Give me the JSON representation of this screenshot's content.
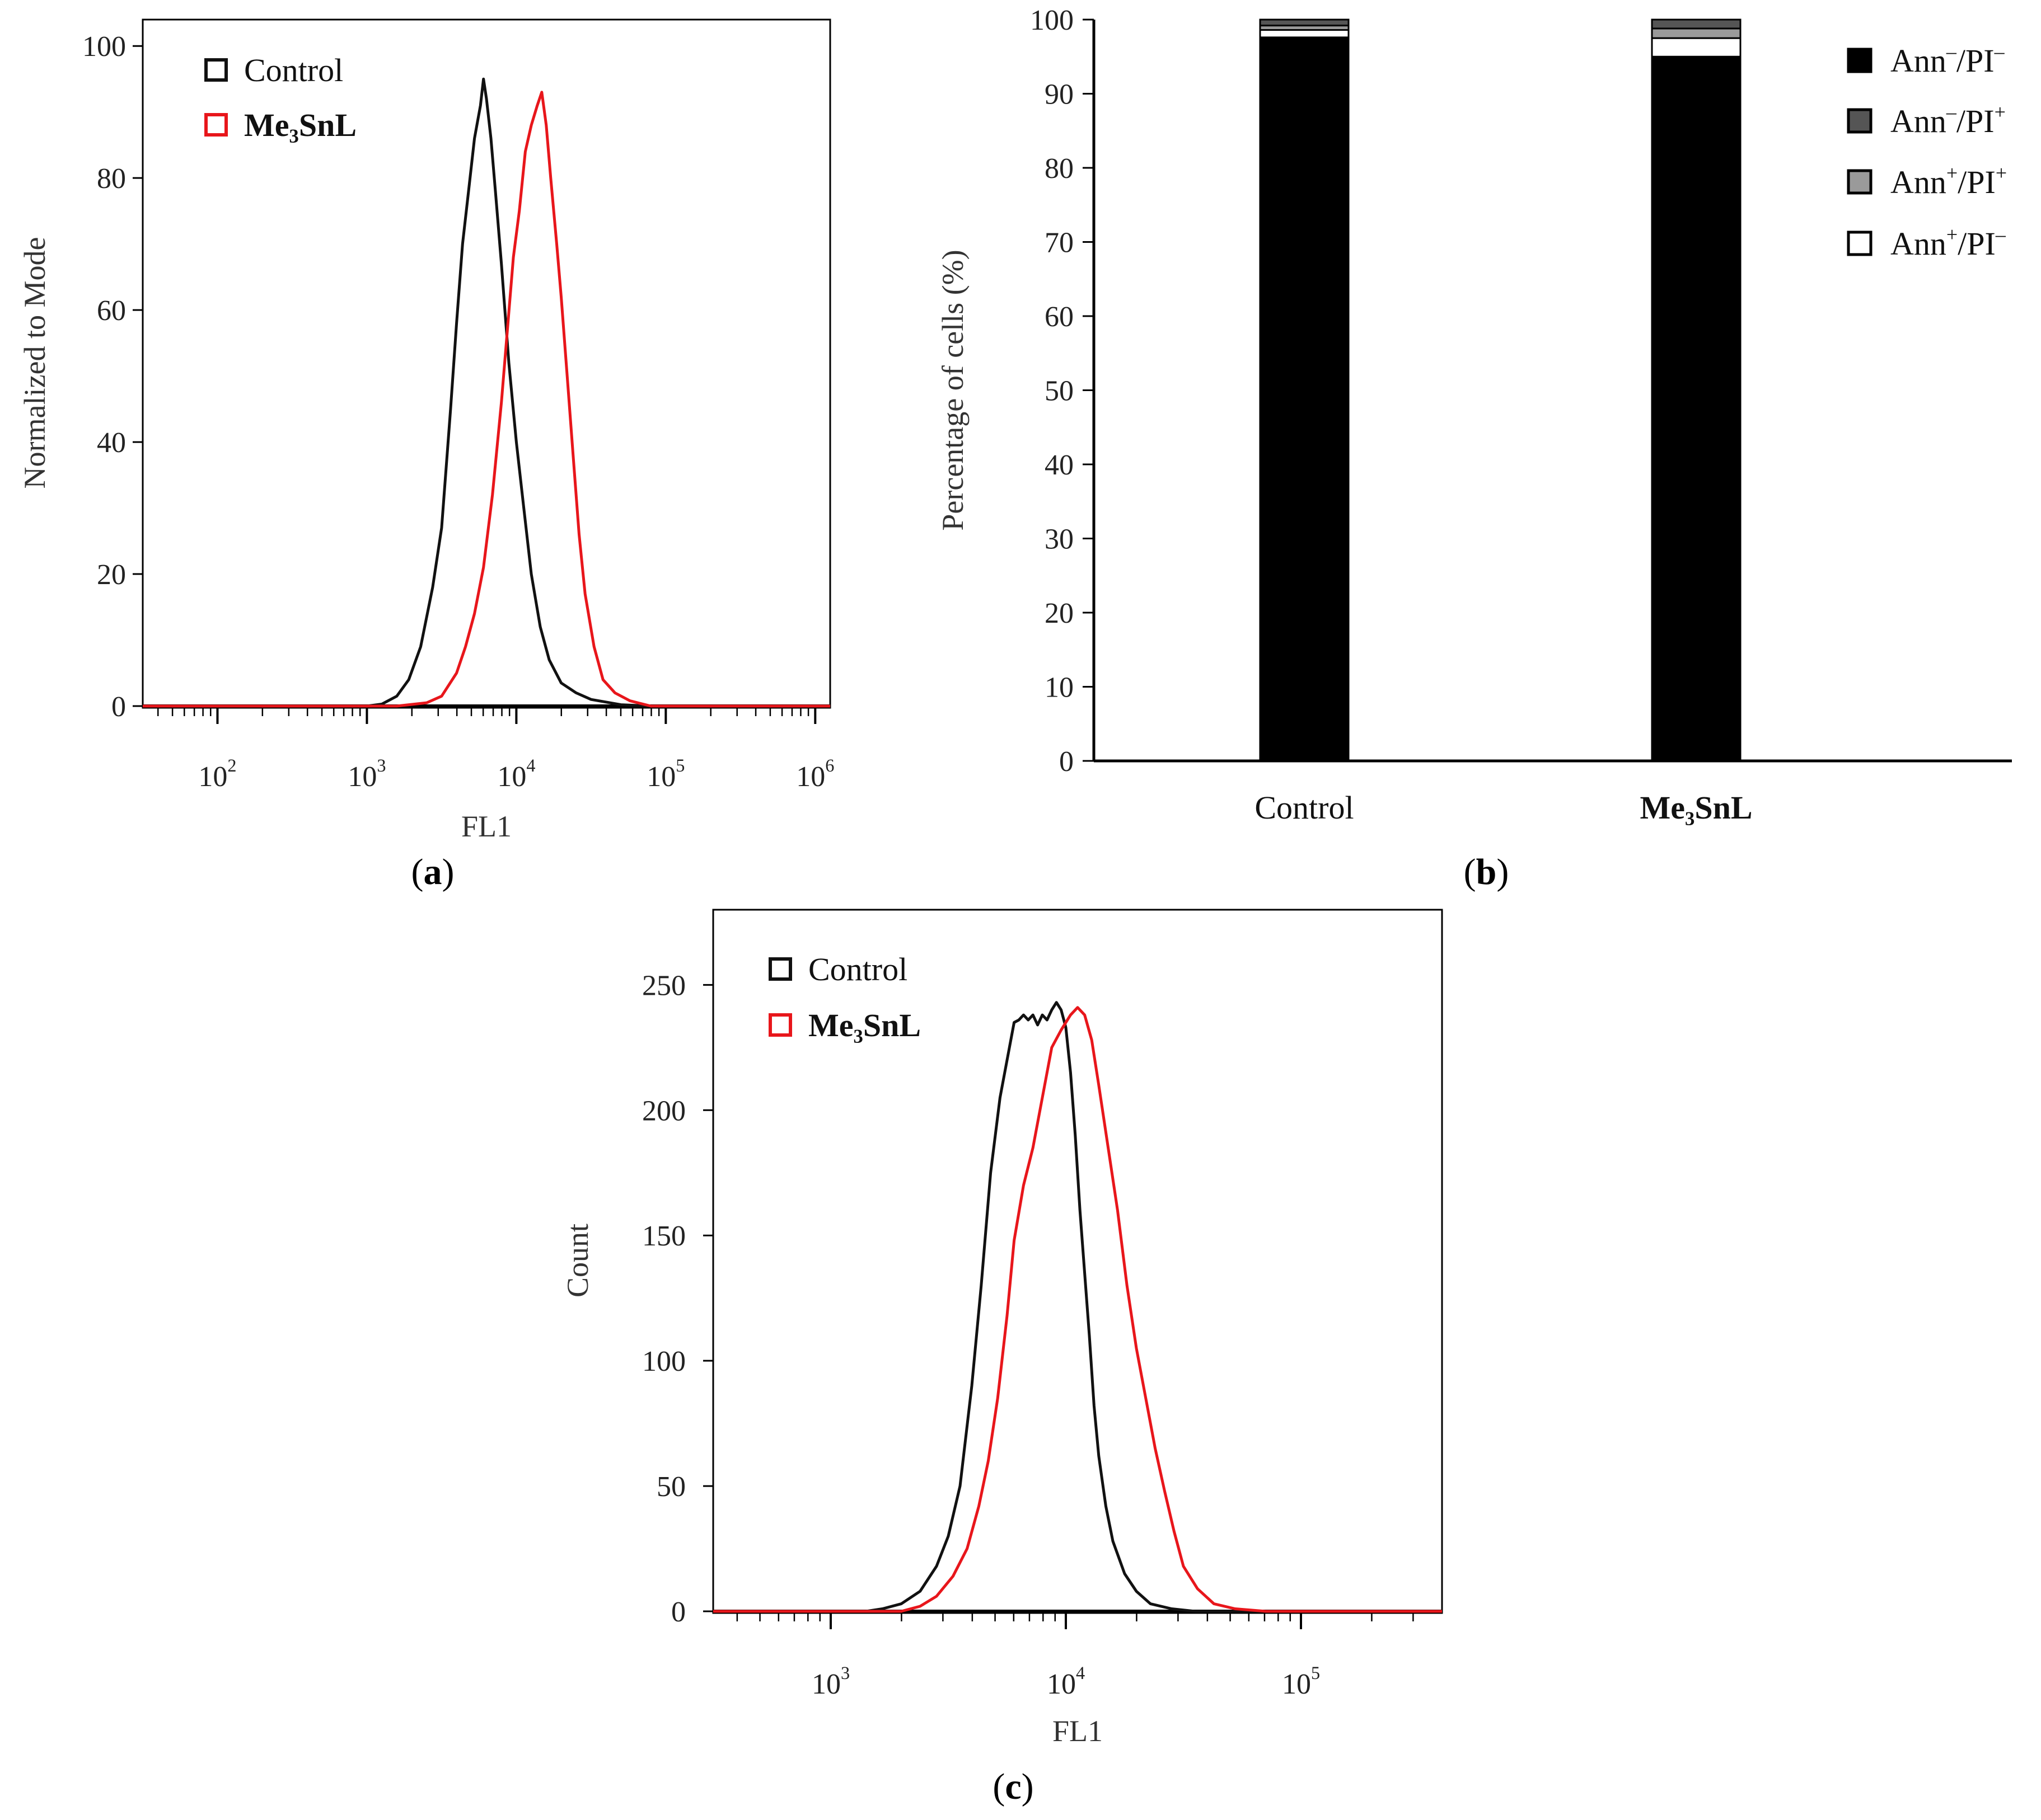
{
  "chart_data": [
    {
      "id": "a",
      "panel_label": "a",
      "type": "line",
      "x_scale": "log",
      "xlabel": "FL1",
      "ylabel": "Normalized to Mode",
      "xlim_log10": [
        1.5,
        6.1
      ],
      "ylim": [
        0,
        104
      ],
      "x_ticks": [
        {
          "base": "10",
          "exp": "2",
          "log10": 2
        },
        {
          "base": "10",
          "exp": "3",
          "log10": 3
        },
        {
          "base": "10",
          "exp": "4",
          "log10": 4
        },
        {
          "base": "10",
          "exp": "5",
          "log10": 5
        },
        {
          "base": "10",
          "exp": "6",
          "log10": 6
        }
      ],
      "y_ticks": [
        0,
        20,
        40,
        60,
        80,
        100
      ],
      "legend": [
        {
          "name": "Control",
          "color": "#111111",
          "bold": false
        },
        {
          "name": "Me₃SnL",
          "color": "#e8161b",
          "bold": true
        }
      ],
      "series": [
        {
          "name": "Control",
          "color": "#111111",
          "points": [
            [
              1.5,
              0
            ],
            [
              3.0,
              0
            ],
            [
              3.1,
              0.3
            ],
            [
              3.2,
              1.5
            ],
            [
              3.28,
              4
            ],
            [
              3.36,
              9
            ],
            [
              3.44,
              18
            ],
            [
              3.5,
              27
            ],
            [
              3.56,
              45
            ],
            [
              3.6,
              58
            ],
            [
              3.64,
              70
            ],
            [
              3.68,
              78
            ],
            [
              3.72,
              86
            ],
            [
              3.76,
              91
            ],
            [
              3.78,
              95
            ],
            [
              3.8,
              92
            ],
            [
              3.83,
              86
            ],
            [
              3.86,
              78
            ],
            [
              3.9,
              67
            ],
            [
              3.95,
              52
            ],
            [
              4.0,
              40
            ],
            [
              4.05,
              30
            ],
            [
              4.1,
              20
            ],
            [
              4.16,
              12
            ],
            [
              4.22,
              7
            ],
            [
              4.3,
              3.5
            ],
            [
              4.4,
              2
            ],
            [
              4.5,
              1
            ],
            [
              4.7,
              0.2
            ],
            [
              4.9,
              0
            ],
            [
              6.1,
              0
            ]
          ]
        },
        {
          "name": "Me₃SnL",
          "color": "#e8161b",
          "points": [
            [
              1.5,
              0
            ],
            [
              3.2,
              0
            ],
            [
              3.4,
              0.5
            ],
            [
              3.5,
              1.5
            ],
            [
              3.6,
              5
            ],
            [
              3.66,
              9
            ],
            [
              3.72,
              14
            ],
            [
              3.78,
              21
            ],
            [
              3.84,
              32
            ],
            [
              3.9,
              46
            ],
            [
              3.94,
              57
            ],
            [
              3.98,
              68
            ],
            [
              4.02,
              75
            ],
            [
              4.06,
              84
            ],
            [
              4.1,
              88
            ],
            [
              4.14,
              91
            ],
            [
              4.17,
              93
            ],
            [
              4.2,
              88
            ],
            [
              4.23,
              80
            ],
            [
              4.27,
              70
            ],
            [
              4.3,
              62
            ],
            [
              4.34,
              50
            ],
            [
              4.38,
              38
            ],
            [
              4.42,
              26
            ],
            [
              4.46,
              17
            ],
            [
              4.52,
              9
            ],
            [
              4.58,
              4
            ],
            [
              4.66,
              2
            ],
            [
              4.76,
              0.8
            ],
            [
              4.9,
              0
            ],
            [
              6.1,
              0
            ]
          ]
        }
      ]
    },
    {
      "id": "b",
      "panel_label": "b",
      "type": "bar",
      "stacked": true,
      "ylabel": "Percentage of cells (%)",
      "ylim": [
        0,
        100
      ],
      "y_ticks": [
        0,
        10,
        20,
        30,
        40,
        50,
        60,
        70,
        80,
        90,
        100
      ],
      "categories": [
        {
          "label": "Control",
          "bold": false
        },
        {
          "label": "Me₃SnL",
          "bold": true
        }
      ],
      "legend_labels": [
        {
          "base": "Ann",
          "sup1": "–",
          "mid": "/PI",
          "sup2": "–"
        },
        {
          "base": "Ann",
          "sup1": "–",
          "mid": "/PI",
          "sup2": "+"
        },
        {
          "base": "Ann",
          "sup1": "+",
          "mid": "/PI",
          "sup2": "+"
        },
        {
          "base": "Ann",
          "sup1": "+",
          "mid": "/PI",
          "sup2": "–"
        }
      ],
      "series": [
        {
          "name": "Ann–/PI–",
          "color": "#000000",
          "values": [
            97.6,
            95.0
          ]
        },
        {
          "name": "Ann+/PI–",
          "color": "#ffffff",
          "values": [
            1.0,
            2.5
          ]
        },
        {
          "name": "Ann+/PI+",
          "color": "#9a9a9a",
          "values": [
            0.6,
            1.3
          ]
        },
        {
          "name": "Ann–/PI+",
          "color": "#555555",
          "values": [
            0.8,
            1.2
          ]
        }
      ]
    },
    {
      "id": "c",
      "panel_label": "c",
      "type": "line",
      "x_scale": "log",
      "xlabel": "FL1",
      "ylabel": "Count",
      "xlim_log10": [
        2.5,
        5.6
      ],
      "ylim": [
        0,
        280
      ],
      "x_ticks": [
        {
          "base": "10",
          "exp": "3",
          "log10": 3
        },
        {
          "base": "10",
          "exp": "4",
          "log10": 4
        },
        {
          "base": "10",
          "exp": "5",
          "log10": 5
        }
      ],
      "y_ticks": [
        0,
        50,
        100,
        150,
        200,
        250
      ],
      "legend": [
        {
          "name": "Control",
          "color": "#111111",
          "bold": false
        },
        {
          "name": "Me₃SnL",
          "color": "#e8161b",
          "bold": true
        }
      ],
      "series": [
        {
          "name": "Control",
          "color": "#111111",
          "points": [
            [
              2.5,
              0
            ],
            [
              3.15,
              0
            ],
            [
              3.22,
              1
            ],
            [
              3.3,
              3
            ],
            [
              3.38,
              8
            ],
            [
              3.45,
              18
            ],
            [
              3.5,
              30
            ],
            [
              3.55,
              50
            ],
            [
              3.6,
              90
            ],
            [
              3.64,
              130
            ],
            [
              3.68,
              175
            ],
            [
              3.72,
              205
            ],
            [
              3.76,
              225
            ],
            [
              3.78,
              235
            ],
            [
              3.8,
              236
            ],
            [
              3.82,
              238
            ],
            [
              3.84,
              236
            ],
            [
              3.86,
              238
            ],
            [
              3.88,
              234
            ],
            [
              3.9,
              238
            ],
            [
              3.92,
              236
            ],
            [
              3.94,
              240
            ],
            [
              3.96,
              243
            ],
            [
              3.98,
              240
            ],
            [
              4.0,
              233
            ],
            [
              4.02,
              215
            ],
            [
              4.04,
              190
            ],
            [
              4.06,
              160
            ],
            [
              4.08,
              135
            ],
            [
              4.1,
              110
            ],
            [
              4.12,
              82
            ],
            [
              4.14,
              62
            ],
            [
              4.17,
              42
            ],
            [
              4.2,
              28
            ],
            [
              4.25,
              15
            ],
            [
              4.3,
              8
            ],
            [
              4.36,
              3
            ],
            [
              4.45,
              1
            ],
            [
              4.55,
              0
            ],
            [
              5.6,
              0
            ]
          ]
        },
        {
          "name": "Me₃SnL",
          "color": "#e8161b",
          "points": [
            [
              2.5,
              0
            ],
            [
              3.3,
              0
            ],
            [
              3.38,
              2
            ],
            [
              3.45,
              6
            ],
            [
              3.52,
              14
            ],
            [
              3.58,
              25
            ],
            [
              3.63,
              42
            ],
            [
              3.67,
              60
            ],
            [
              3.71,
              85
            ],
            [
              3.75,
              118
            ],
            [
              3.78,
              148
            ],
            [
              3.82,
              170
            ],
            [
              3.86,
              185
            ],
            [
              3.9,
              205
            ],
            [
              3.94,
              225
            ],
            [
              3.98,
              232
            ],
            [
              4.02,
              238
            ],
            [
              4.05,
              241
            ],
            [
              4.08,
              238
            ],
            [
              4.11,
              228
            ],
            [
              4.14,
              210
            ],
            [
              4.18,
              185
            ],
            [
              4.22,
              160
            ],
            [
              4.26,
              130
            ],
            [
              4.3,
              105
            ],
            [
              4.34,
              85
            ],
            [
              4.38,
              65
            ],
            [
              4.42,
              48
            ],
            [
              4.46,
              32
            ],
            [
              4.5,
              18
            ],
            [
              4.56,
              9
            ],
            [
              4.63,
              3
            ],
            [
              4.72,
              1
            ],
            [
              4.85,
              0
            ],
            [
              5.6,
              0
            ]
          ]
        }
      ]
    }
  ]
}
